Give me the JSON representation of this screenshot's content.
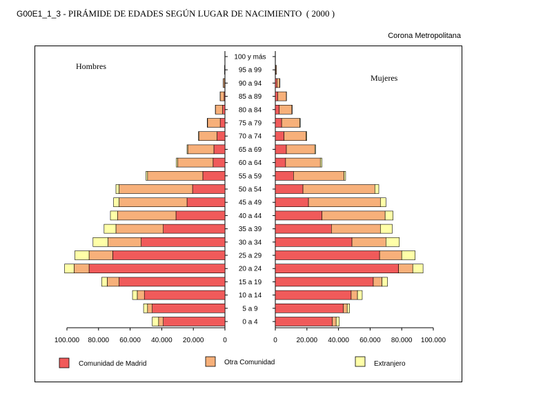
{
  "header": {
    "code": "G00E1_1_3",
    "title": "- PIRÁMIDE DE EDADES SEGÚN LUGAR DE NACIMIENTO",
    "year": "( 2000 )",
    "region": "Corona Metropolitana"
  },
  "chart_data": {
    "type": "bar",
    "subtype": "population-pyramid-stacked",
    "left_label": "Hombres",
    "right_label": "Mujeres",
    "categories": [
      "0 a 4",
      "5 a 9",
      "10 a 14",
      "15 a 19",
      "20 a 24",
      "25 a 29",
      "30 a 34",
      "35 a 39",
      "40 a 44",
      "45 a 49",
      "50 a 54",
      "55 a 59",
      "60 a 64",
      "65 a 69",
      "70 a 74",
      "75 a 79",
      "80 a 84",
      "85 a 89",
      "90 a 94",
      "95 a 99",
      "100 y más"
    ],
    "x_ticks_left": [
      "100.000",
      "80.000",
      "60.000",
      "40.000",
      "20.000",
      "0"
    ],
    "x_ticks_right": [
      "0",
      "20.000",
      "40.000",
      "60.000",
      "80.000",
      "100.000"
    ],
    "xlim": [
      0,
      100000
    ],
    "legend": [
      {
        "name": "Comunidad de Madrid",
        "color": "#f05a5a"
      },
      {
        "name": "Otra Comunidad",
        "color": "#f7b07a"
      },
      {
        "name": "Extranjero",
        "color": "#ffffa8"
      }
    ],
    "men": {
      "Comunidad de Madrid": [
        39000,
        46000,
        51000,
        67000,
        86000,
        71000,
        53000,
        39000,
        31000,
        24000,
        20500,
        14000,
        7500,
        7000,
        5000,
        3000,
        1500,
        500,
        200,
        50,
        0
      ],
      "Otra Comunidad": [
        3000,
        3000,
        4500,
        7500,
        9500,
        15000,
        21000,
        30000,
        37000,
        43000,
        46500,
        35000,
        22500,
        16500,
        11500,
        8000,
        4500,
        2500,
        800,
        200,
        100
      ],
      "Extranjero": [
        4000,
        2500,
        3000,
        3500,
        6000,
        9000,
        9500,
        7500,
        4500,
        3500,
        2000,
        1000,
        800,
        500,
        300,
        200,
        100,
        50,
        50,
        0,
        0
      ]
    },
    "women": {
      "Comunidad de Madrid": [
        36000,
        43000,
        48000,
        62000,
        78000,
        66000,
        48500,
        35500,
        29500,
        21000,
        17500,
        11500,
        6500,
        7000,
        5500,
        4000,
        2500,
        1500,
        1000,
        200,
        0
      ],
      "Otra Comunidad": [
        2500,
        2500,
        4000,
        5500,
        9000,
        14000,
        21500,
        31000,
        40000,
        45500,
        45500,
        32000,
        22000,
        18000,
        14000,
        11500,
        8000,
        5500,
        1800,
        500,
        100
      ],
      "Extranjero": [
        2000,
        1500,
        3000,
        3500,
        6500,
        8500,
        8500,
        7500,
        5000,
        3500,
        2500,
        1000,
        1000,
        500,
        400,
        300,
        200,
        100,
        100,
        0,
        0
      ]
    }
  }
}
